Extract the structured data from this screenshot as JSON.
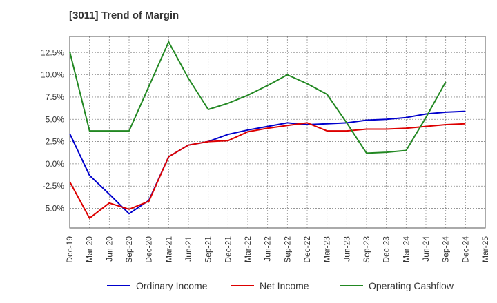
{
  "chart_data": {
    "type": "line",
    "title": "[3011]  Trend of Margin",
    "xlabel": "",
    "ylabel": "",
    "x": [
      "Dec-19",
      "Mar-20",
      "Jun-20",
      "Sep-20",
      "Dec-20",
      "Mar-21",
      "Jun-21",
      "Sep-21",
      "Dec-21",
      "Mar-22",
      "Jun-22",
      "Sep-22",
      "Dec-22",
      "Mar-23",
      "Jun-23",
      "Sep-23",
      "Dec-23",
      "Mar-24",
      "Jun-24",
      "Sep-24",
      "Dec-24",
      "Mar-25"
    ],
    "ylim": [
      -7.2,
      14.3
    ],
    "yticks": [
      -5.0,
      -2.5,
      0.0,
      2.5,
      5.0,
      7.5,
      10.0,
      12.5
    ],
    "ytick_labels": [
      "-5.0%",
      "-2.5%",
      "0.0%",
      "2.5%",
      "5.0%",
      "7.5%",
      "10.0%",
      "12.5%"
    ],
    "grid": true,
    "legend_position": "bottom",
    "series": [
      {
        "name": "Ordinary Income",
        "color": "#0000cc",
        "values": [
          3.4,
          -1.3,
          -3.4,
          -5.6,
          -4.1,
          0.8,
          2.1,
          2.5,
          3.3,
          3.8,
          4.2,
          4.6,
          4.4,
          4.5,
          4.6,
          4.9,
          5.0,
          5.2,
          5.6,
          5.8,
          5.9,
          null
        ]
      },
      {
        "name": "Net Income",
        "color": "#dd0000",
        "values": [
          -2.0,
          -6.1,
          -4.4,
          -5.1,
          -4.2,
          0.8,
          2.1,
          2.5,
          2.6,
          3.6,
          4.0,
          4.3,
          4.6,
          3.7,
          3.7,
          3.9,
          3.9,
          4.0,
          4.2,
          4.4,
          4.5,
          null
        ]
      },
      {
        "name": "Operating Cashflow",
        "color": "#228822",
        "values": [
          12.6,
          3.7,
          3.7,
          3.7,
          8.7,
          13.7,
          9.6,
          6.1,
          6.8,
          7.7,
          8.8,
          10.0,
          9.0,
          7.8,
          4.6,
          1.2,
          1.3,
          1.5,
          5.2,
          9.2,
          null,
          null
        ]
      }
    ]
  }
}
